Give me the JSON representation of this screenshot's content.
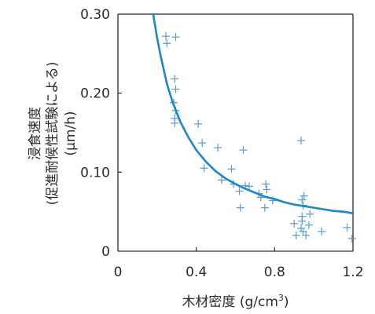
{
  "chart_data": {
    "type": "scatter",
    "xlabel": "木材密度 (g/cm",
    "xlabel_sup": "3",
    "xlabel_end": ")",
    "ylabel_lines": [
      "浸食速度",
      "(促進耐候性試験による)",
      "(μm/h)"
    ],
    "xlim": [
      0,
      1.2
    ],
    "ylim": [
      0,
      0.3
    ],
    "x_ticks": [
      0,
      0.4,
      0.8,
      1.2
    ],
    "x_tick_labels": [
      "0",
      "0.4",
      "0.8",
      "1.2"
    ],
    "y_ticks": [
      0,
      0.1,
      0.2,
      0.3
    ],
    "y_tick_labels": [
      "0",
      "0.10",
      "0.20",
      "0.30"
    ],
    "grid": false,
    "marker": "plus",
    "colors": {
      "points": "#5b9cc9",
      "curve": "#1b87c9",
      "axis": "#2b2b2b"
    },
    "points": [
      {
        "x": 0.245,
        "y": 0.272
      },
      {
        "x": 0.25,
        "y": 0.263
      },
      {
        "x": 0.295,
        "y": 0.271
      },
      {
        "x": 0.29,
        "y": 0.218
      },
      {
        "x": 0.295,
        "y": 0.205
      },
      {
        "x": 0.295,
        "y": 0.178
      },
      {
        "x": 0.29,
        "y": 0.168
      },
      {
        "x": 0.29,
        "y": 0.162
      },
      {
        "x": 0.285,
        "y": 0.188
      },
      {
        "x": 0.41,
        "y": 0.161
      },
      {
        "x": 0.43,
        "y": 0.137
      },
      {
        "x": 0.44,
        "y": 0.105
      },
      {
        "x": 0.51,
        "y": 0.131
      },
      {
        "x": 0.53,
        "y": 0.09
      },
      {
        "x": 0.58,
        "y": 0.104
      },
      {
        "x": 0.59,
        "y": 0.085
      },
      {
        "x": 0.62,
        "y": 0.076
      },
      {
        "x": 0.625,
        "y": 0.055
      },
      {
        "x": 0.64,
        "y": 0.128
      },
      {
        "x": 0.65,
        "y": 0.083
      },
      {
        "x": 0.67,
        "y": 0.082
      },
      {
        "x": 0.72,
        "y": 0.073
      },
      {
        "x": 0.73,
        "y": 0.068
      },
      {
        "x": 0.755,
        "y": 0.085
      },
      {
        "x": 0.76,
        "y": 0.078
      },
      {
        "x": 0.75,
        "y": 0.055
      },
      {
        "x": 0.79,
        "y": 0.064
      },
      {
        "x": 0.9,
        "y": 0.035
      },
      {
        "x": 0.91,
        "y": 0.02
      },
      {
        "x": 0.935,
        "y": 0.14
      },
      {
        "x": 0.94,
        "y": 0.065
      },
      {
        "x": 0.95,
        "y": 0.07
      },
      {
        "x": 0.945,
        "y": 0.058
      },
      {
        "x": 0.94,
        "y": 0.044
      },
      {
        "x": 0.94,
        "y": 0.038
      },
      {
        "x": 0.935,
        "y": 0.029
      },
      {
        "x": 0.945,
        "y": 0.025
      },
      {
        "x": 0.98,
        "y": 0.047
      },
      {
        "x": 0.975,
        "y": 0.033
      },
      {
        "x": 0.96,
        "y": 0.02
      },
      {
        "x": 1.04,
        "y": 0.025
      },
      {
        "x": 1.17,
        "y": 0.03
      },
      {
        "x": 1.195,
        "y": 0.016
      }
    ],
    "fit_curve": {
      "x": [
        0.18,
        0.2,
        0.22,
        0.25,
        0.28,
        0.32,
        0.36,
        0.4,
        0.45,
        0.5,
        0.55,
        0.6,
        0.65,
        0.7,
        0.75,
        0.8,
        0.85,
        0.9,
        0.95,
        1.0,
        1.05,
        1.1,
        1.15,
        1.2
      ],
      "y": [
        0.3,
        0.27,
        0.245,
        0.212,
        0.188,
        0.163,
        0.144,
        0.128,
        0.113,
        0.101,
        0.092,
        0.085,
        0.079,
        0.074,
        0.069,
        0.066,
        0.062,
        0.059,
        0.057,
        0.055,
        0.053,
        0.051,
        0.05,
        0.048
      ]
    }
  }
}
